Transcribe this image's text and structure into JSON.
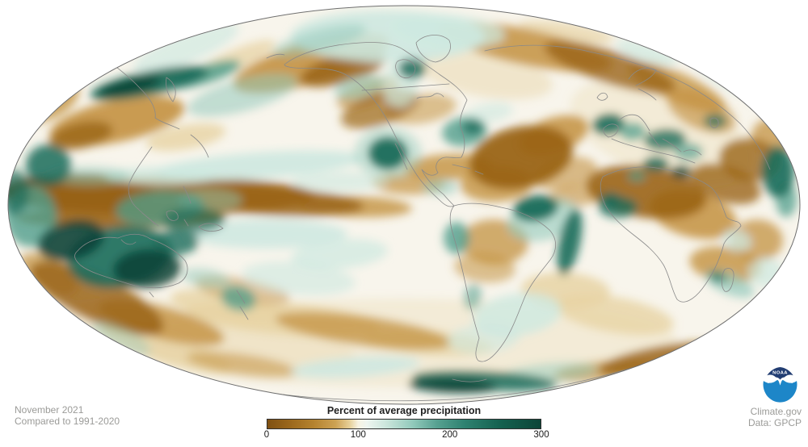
{
  "footer": {
    "left_line1": "November 2021",
    "left_line2": "Compared to 1991-2020",
    "right_line1": "Climate.gov",
    "right_line2": "Data: GPCP"
  },
  "legend": {
    "label": "Percent of average precipitation",
    "ticks": [
      "0",
      "100",
      "200",
      "300"
    ],
    "range": [
      0,
      300
    ],
    "gradient": [
      [
        "#7f5012",
        0
      ],
      [
        "#9a671c",
        8
      ],
      [
        "#b5832f",
        17
      ],
      [
        "#cda254",
        25
      ],
      [
        "#e6cf97",
        30
      ],
      [
        "#f7f3e3",
        33.3
      ],
      [
        "#eef5f0",
        36.5
      ],
      [
        "#c8e4da",
        44
      ],
      [
        "#93cabc",
        53
      ],
      [
        "#57a191",
        62
      ],
      [
        "#2f8271",
        72
      ],
      [
        "#156250",
        85
      ],
      [
        "#0c4538",
        100
      ]
    ]
  },
  "logo": {
    "label": "NOAA",
    "navy": "#223d72",
    "blue": "#1d86c8",
    "white": "#ffffff"
  },
  "map": {
    "base_color": "#f8f5ec",
    "outline_color": "#6e6e6e",
    "coast_color": "#8a8a8a",
    "palette": {
      "b0": "#e7d3a4",
      "b1": "#c39140",
      "b2": "#9a6416",
      "b3": "#70430a",
      "t0": "#cde8e0",
      "t1": "#93c9bc",
      "t2": "#4f9d8c",
      "t3": "#1a6b5a",
      "t4": "#0a4236"
    },
    "blobs": [
      [
        500,
        425,
        340,
        55,
        0,
        "b0",
        0.3
      ],
      [
        250,
        415,
        190,
        38,
        8,
        "b0",
        0.3
      ],
      [
        820,
        165,
        120,
        55,
        20,
        "b0",
        0.3
      ],
      [
        600,
        92,
        85,
        28,
        10,
        "b0",
        0.45
      ],
      [
        290,
        75,
        55,
        13,
        -24,
        "b0",
        0.75
      ],
      [
        230,
        170,
        50,
        15,
        -10,
        "b0",
        0.8
      ],
      [
        350,
        395,
        120,
        20,
        5,
        "b0",
        0.85
      ],
      [
        280,
        380,
        70,
        18,
        10,
        "b0",
        0.8
      ],
      [
        530,
        425,
        80,
        15,
        5,
        "b0",
        0.75
      ],
      [
        205,
        432,
        85,
        18,
        18,
        "b0",
        0.8
      ],
      [
        700,
        40,
        60,
        12,
        8,
        "b0",
        0.7
      ],
      [
        700,
        360,
        55,
        22,
        3,
        "b0",
        0.85
      ],
      [
        760,
        390,
        75,
        22,
        10,
        "b0",
        0.8
      ],
      [
        145,
        150,
        85,
        26,
        -12,
        "b1",
        0.9
      ],
      [
        55,
        125,
        45,
        24,
        -22,
        "b1",
        0.8
      ],
      [
        385,
        78,
        100,
        26,
        -16,
        "b1",
        0.9
      ],
      [
        455,
        115,
        40,
        15,
        -20,
        "b1",
        0.7
      ],
      [
        520,
        135,
        45,
        18,
        -8,
        "b1",
        0.55
      ],
      [
        650,
        58,
        110,
        22,
        12,
        "b1",
        0.85
      ],
      [
        838,
        108,
        65,
        18,
        24,
        "b1",
        0.8
      ],
      [
        868,
        138,
        45,
        22,
        24,
        "b1",
        0.65
      ],
      [
        685,
        168,
        45,
        22,
        -18,
        "b1",
        0.85
      ],
      [
        615,
        228,
        45,
        22,
        -3,
        "b1",
        0.8
      ],
      [
        700,
        215,
        40,
        20,
        -10,
        "b1",
        0.6
      ],
      [
        555,
        207,
        55,
        16,
        -3,
        "b1",
        0.8
      ],
      [
        505,
        228,
        45,
        13,
        2,
        "b1",
        0.7
      ],
      [
        440,
        256,
        70,
        13,
        2,
        "b1",
        0.8
      ],
      [
        612,
        300,
        42,
        28,
        2,
        "b1",
        0.75
      ],
      [
        600,
        332,
        38,
        18,
        5,
        "b1",
        0.55
      ],
      [
        715,
        242,
        35,
        13,
        -5,
        "b1",
        0.6
      ],
      [
        858,
        266,
        55,
        28,
        14,
        "b1",
        0.85
      ],
      [
        958,
        168,
        28,
        22,
        0,
        "b1",
        0.75
      ],
      [
        937,
        298,
        32,
        26,
        0,
        "b1",
        0.75
      ],
      [
        898,
        328,
        45,
        22,
        8,
        "b1",
        0.8
      ],
      [
        200,
        400,
        80,
        20,
        15,
        "b1",
        0.8
      ],
      [
        60,
        340,
        40,
        20,
        30,
        "b1",
        0.7
      ],
      [
        300,
        360,
        60,
        15,
        10,
        "b1",
        0.5
      ],
      [
        450,
        410,
        110,
        18,
        8,
        "b1",
        0.75
      ],
      [
        300,
        452,
        70,
        13,
        8,
        "b1",
        0.55
      ],
      [
        745,
        460,
        60,
        12,
        -6,
        "b1",
        0.7
      ],
      [
        95,
        238,
        95,
        22,
        0,
        "b3",
        0.95
      ],
      [
        200,
        243,
        190,
        24,
        0,
        "b2",
        0.95
      ],
      [
        340,
        250,
        110,
        17,
        3,
        "b2",
        0.85
      ],
      [
        150,
        270,
        130,
        13,
        0,
        "b2",
        0.9
      ],
      [
        100,
        168,
        40,
        16,
        -12,
        "b2",
        0.8
      ],
      [
        425,
        85,
        55,
        18,
        -16,
        "b2",
        0.85
      ],
      [
        470,
        135,
        50,
        20,
        -18,
        "b2",
        0.7
      ],
      [
        755,
        83,
        85,
        20,
        18,
        "b2",
        0.8
      ],
      [
        645,
        195,
        65,
        38,
        -12,
        "b2",
        0.95
      ],
      [
        800,
        238,
        75,
        32,
        8,
        "b2",
        0.9
      ],
      [
        898,
        228,
        45,
        22,
        18,
        "b2",
        0.8
      ],
      [
        928,
        198,
        38,
        26,
        8,
        "b2",
        0.8
      ],
      [
        820,
        445,
        80,
        16,
        -10,
        "b2",
        0.85
      ],
      [
        120,
        370,
        90,
        28,
        25,
        "b2",
        0.85
      ],
      [
        320,
        205,
        130,
        16,
        -4,
        "t0",
        0.9
      ],
      [
        200,
        218,
        70,
        11,
        0,
        "t0",
        0.8
      ],
      [
        480,
        45,
        120,
        32,
        0,
        "t0",
        0.9
      ],
      [
        555,
        38,
        70,
        20,
        5,
        "t0",
        0.75
      ],
      [
        230,
        60,
        70,
        18,
        -22,
        "t0",
        0.65
      ],
      [
        800,
        65,
        40,
        11,
        18,
        "t0",
        0.7
      ],
      [
        495,
        105,
        22,
        28,
        0,
        "t0",
        0.7
      ],
      [
        605,
        140,
        30,
        12,
        -10,
        "t0",
        0.6
      ],
      [
        420,
        225,
        60,
        12,
        0,
        "t0",
        0.6
      ],
      [
        330,
        290,
        100,
        18,
        0,
        "t0",
        0.85
      ],
      [
        420,
        315,
        60,
        18,
        -5,
        "t0",
        0.7
      ],
      [
        370,
        345,
        70,
        20,
        5,
        "t0",
        0.6
      ],
      [
        640,
        390,
        55,
        26,
        -8,
        "t0",
        0.8
      ],
      [
        598,
        420,
        45,
        18,
        -4,
        "t0",
        0.6
      ],
      [
        912,
        298,
        18,
        13,
        18,
        "t0",
        0.75
      ],
      [
        948,
        338,
        22,
        18,
        0,
        "t0",
        0.7
      ],
      [
        905,
        92,
        55,
        18,
        28,
        "t0",
        0.6
      ],
      [
        955,
        115,
        35,
        20,
        15,
        "t0",
        0.6
      ],
      [
        440,
        455,
        80,
        12,
        -4,
        "t0",
        0.85
      ],
      [
        110,
        218,
        50,
        12,
        0,
        "t1",
        0.5
      ],
      [
        300,
        118,
        70,
        20,
        -15,
        "t1",
        0.55
      ],
      [
        395,
        50,
        60,
        14,
        -15,
        "t1",
        0.5
      ],
      [
        445,
        108,
        32,
        13,
        -14,
        "t1",
        0.6
      ],
      [
        480,
        190,
        42,
        32,
        0,
        "t1",
        0.45
      ],
      [
        545,
        232,
        22,
        10,
        0,
        "t1",
        0.55
      ],
      [
        672,
        272,
        45,
        26,
        -12,
        "t1",
        0.6
      ],
      [
        255,
        345,
        30,
        12,
        10,
        "t1",
        0.5
      ],
      [
        150,
        420,
        40,
        14,
        25,
        "t1",
        0.4
      ],
      [
        680,
        462,
        60,
        12,
        -5,
        "t1",
        0.5
      ],
      [
        903,
        352,
        32,
        13,
        22,
        "t1",
        0.7
      ],
      [
        260,
        248,
        40,
        14,
        0,
        "t1",
        0.5
      ],
      [
        255,
        92,
        45,
        11,
        -18,
        "t2",
        0.85
      ],
      [
        575,
        163,
        28,
        18,
        -8,
        "t2",
        0.8
      ],
      [
        565,
        295,
        16,
        20,
        0,
        "t2",
        0.8
      ],
      [
        585,
        368,
        11,
        16,
        12,
        "t2",
        0.55
      ],
      [
        295,
        370,
        22,
        15,
        15,
        "t2",
        0.75
      ],
      [
        783,
        163,
        16,
        11,
        -4,
        "t2",
        0.75
      ],
      [
        852,
        188,
        18,
        11,
        0,
        "t2",
        0.65
      ],
      [
        788,
        218,
        11,
        7,
        0,
        "t2",
        0.65
      ],
      [
        973,
        247,
        13,
        22,
        0,
        "t2",
        0.75
      ],
      [
        198,
        258,
        55,
        22,
        -4,
        "t2",
        0.75
      ],
      [
        38,
        268,
        32,
        38,
        0,
        "t2",
        0.8
      ],
      [
        60,
        205,
        28,
        26,
        0,
        "t3",
        0.85
      ],
      [
        185,
        103,
        75,
        15,
        -12,
        "t3",
        0.95
      ],
      [
        510,
        85,
        17,
        13,
        0,
        "t3",
        0.85
      ],
      [
        480,
        190,
        24,
        20,
        0,
        "t3",
        0.95
      ],
      [
        585,
        158,
        13,
        9,
        0,
        "t3",
        0.8
      ],
      [
        663,
        258,
        28,
        16,
        -8,
        "t3",
        0.95
      ],
      [
        705,
        300,
        13,
        42,
        12,
        "t3",
        0.9
      ],
      [
        753,
        154,
        20,
        13,
        -8,
        "t3",
        0.9
      ],
      [
        823,
        173,
        26,
        13,
        -4,
        "t3",
        0.8
      ],
      [
        885,
        150,
        14,
        9,
        0,
        "t3",
        0.7
      ],
      [
        812,
        203,
        16,
        9,
        0,
        "t3",
        0.85
      ],
      [
        755,
        248,
        14,
        9,
        0,
        "t3",
        0.85
      ],
      [
        765,
        257,
        24,
        13,
        0,
        "t3",
        0.8
      ],
      [
        963,
        213,
        20,
        32,
        0,
        "t3",
        0.9
      ],
      [
        888,
        343,
        11,
        7,
        18,
        "t3",
        0.65
      ],
      [
        148,
        318,
        65,
        38,
        -8,
        "t3",
        0.9
      ],
      [
        218,
        300,
        28,
        16,
        -2,
        "t3",
        0.8
      ],
      [
        240,
        273,
        38,
        16,
        0,
        "t3",
        0.65
      ],
      [
        18,
        238,
        18,
        28,
        0,
        "t3",
        0.7
      ],
      [
        600,
        472,
        90,
        12,
        3,
        "t3",
        0.85
      ],
      [
        160,
        107,
        40,
        9,
        -12,
        "t4",
        0.9
      ],
      [
        88,
        298,
        42,
        24,
        -14,
        "t4",
        0.9
      ],
      [
        182,
        333,
        42,
        24,
        -4,
        "t4",
        0.85
      ],
      [
        843,
        213,
        13,
        8,
        0,
        "t4",
        0.8
      ],
      [
        560,
        478,
        55,
        9,
        2,
        "t4",
        0.9
      ]
    ],
    "coastlines": [
      "M352,80 C372,64 410,55 446,53 C472,51 490,55 500,62 C512,70 530,82 545,93 C560,103 572,112 578,124 C572,138 566,150 572,163 C576,175 576,186 571,195 C562,197 553,193 547,196 C539,200 538,208 542,214 C536,220 528,217 522,210 C527,222 538,232 549,241 C554,247 559,252 562,255 C556,258 550,254 544,248 C533,238 522,227 514,214 C505,200 498,186 492,174 C485,160 478,145 468,131 C457,115 444,101 427,92 C408,82 382,86 364,84 C356,83 352,82 352,80 Z",
      "M492,76 C501,71 512,75 514,85 C513,95 504,100 495,94 C489,88 488,80 492,76 Z",
      "M516,122 C522,118 530,122 536,118 C540,114 546,116 549,120",
      "M448,112 L556,104",
      "M489,178 C495,188 499,200 504,210",
      "M515,53 C524,42 545,40 556,50 C561,62 553,74 539,77 C527,75 517,65 515,53 Z",
      "M560,204 L582,209",
      "M588,212 L598,216",
      "M562,255 C578,250 600,252 620,257 C642,261 664,270 680,285 C690,296 690,310 681,322 C670,336 658,350 650,367 C642,386 635,407 624,424 C614,439 602,452 592,447 C586,441 590,430 593,419 C588,403 582,380 577,356 C572,332 566,308 560,288 C556,274 556,262 562,255 Z",
      "M746,219 C768,208 794,204 818,209 C842,213 866,221 881,233 C890,242 894,256 899,269 C906,276 915,272 917,280 C911,289 901,292 896,302 C891,321 882,341 869,358 C859,371 846,379 838,371 C831,359 829,342 821,328 C811,312 797,301 784,291 C771,281 757,269 749,254 C743,241 741,229 746,219 Z",
      "M897,334 C903,330 909,334 908,343 C907,354 903,363 897,361 C892,356 892,342 897,334 Z",
      "M747,159 C753,153 761,152 765,157 C766,163 761,169 753,170 C748,167 746,163 747,159 Z",
      "M765,150 C772,143 782,140 790,144 C796,148 800,155 804,162",
      "M803,164 C808,170 812,177 817,182",
      "M820,172 C828,176 836,182 843,188",
      "M739,121 C743,114 750,113 752,120 C749,125 743,126 739,121 Z",
      "M778,98 C786,86 800,81 812,87 C808,96 795,102 787,106",
      "M790,110 C798,114 806,118 812,124",
      "M846,188 C854,184 862,186 868,192",
      "M757,172 C775,180 798,185 820,190 C834,193 848,197 860,202",
      "M600,63 C645,52 695,55 738,66 C778,74 818,88 852,106 C875,119 898,136 916,153",
      "M916,153 C932,170 945,190 953,210",
      "M879,148 C884,144 890,147 889,154 C887,160 881,160 879,154 Z",
      "M118,64 C138,78 158,93 172,108 C184,120 194,133 192,146",
      "M206,96 C216,102 221,114 214,126 C208,119 204,107 206,96 Z",
      "M192,146 C200,152 212,155 222,160",
      "M236,167 C246,174 254,184 258,195",
      "M188,182 C178,197 166,212 160,227 C157,240 162,252 171,259",
      "M171,259 C178,266 186,272 192,278",
      "M176,264 L196,280",
      "M206,263 C213,258 222,263 220,271 C214,277 206,271 206,263 Z",
      "M246,281 C256,274 269,277 276,283 C268,288 252,288 246,281 Z",
      "M227,231 C231,238 234,245 236,252",
      "M228,272 L233,280",
      "M96,311 C107,298 127,292 146,295 C160,289 174,288 186,296 C203,302 220,312 229,323 C235,333 232,345 221,351 C203,359 180,358 160,352 C138,345 113,339 100,329 C92,322 90,316 96,311 Z",
      "M150,297 C155,303 162,305 168,300",
      "M185,362 L190,368",
      "M293,360 C297,366 300,371 303,376",
      "M297,380 C301,386 304,391 307,396",
      "M157,442 C240,474 330,491 425,495 C505,499 575,496 635,488 C710,478 775,460 836,438",
      "M560,470 C575,474 590,474 602,470",
      "M330,72 C338,68 346,66 352,68"
    ]
  }
}
